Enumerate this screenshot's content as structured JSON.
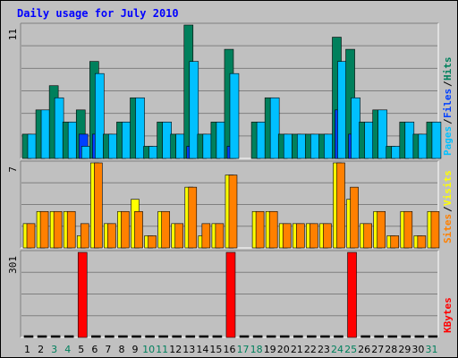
{
  "title": "Daily usage for July 2010",
  "colors": {
    "background": "#c0c0c0",
    "plot_background": "#c0c0c0",
    "title": "#0000ff",
    "hits": "#00805c",
    "files": "#0040ff",
    "pages": "#00c0ff",
    "visits": "#ffff00",
    "sites": "#ff8000",
    "kbytes": "#ff0000",
    "weekend_label": "#00805c",
    "weekday_label": "#000000",
    "gridline": "#808080"
  },
  "chart_data": {
    "type": "bar",
    "title": "Daily usage for July 2010",
    "days": [
      "1",
      "2",
      "3",
      "4",
      "5",
      "6",
      "7",
      "8",
      "9",
      "10",
      "11",
      "12",
      "13",
      "14",
      "15",
      "16",
      "17",
      "18",
      "19",
      "20",
      "21",
      "22",
      "23",
      "24",
      "25",
      "26",
      "27",
      "28",
      "29",
      "30",
      "31"
    ],
    "weekend_days": [
      "3",
      "4",
      "10",
      "11",
      "17",
      "18",
      "24",
      "25",
      "31"
    ],
    "panels": [
      {
        "id": "hits_files_pages",
        "axis_max_label": "11",
        "ylim": [
          0,
          11
        ],
        "right_labels": [
          {
            "text": "Hits",
            "color": "#00805c"
          },
          {
            "text": "/",
            "color": "#000000"
          },
          {
            "text": "Files",
            "color": "#0040ff"
          },
          {
            "text": "/",
            "color": "#000000"
          },
          {
            "text": "Pages",
            "color": "#00c0ff"
          }
        ],
        "series": [
          {
            "name": "Hits",
            "color": "#00805c",
            "values": [
              2,
              4,
              6,
              3,
              4,
              8,
              2,
              3,
              5,
              1,
              3,
              2,
              11,
              2,
              3,
              9,
              0,
              3,
              5,
              2,
              2,
              2,
              2,
              10,
              9,
              3,
              4,
              1,
              3,
              2,
              3
            ]
          },
          {
            "name": "Files",
            "color": "#0040ff",
            "values": [
              0,
              0,
              0,
              0,
              2,
              2,
              0,
              0,
              0,
              0,
              0,
              0,
              1,
              0,
              0,
              1,
              0,
              0,
              0,
              0,
              0,
              0,
              0,
              4,
              2,
              0,
              0,
              0,
              0,
              0,
              0
            ]
          },
          {
            "name": "Pages",
            "color": "#00c0ff",
            "values": [
              2,
              4,
              5,
              3,
              1,
              7,
              2,
              3,
              5,
              1,
              3,
              2,
              8,
              2,
              3,
              7,
              0,
              3,
              5,
              2,
              2,
              2,
              2,
              8,
              5,
              3,
              4,
              1,
              3,
              2,
              3
            ]
          }
        ]
      },
      {
        "id": "visits_sites",
        "axis_max_label": "7",
        "ylim": [
          0,
          7
        ],
        "right_labels": [
          {
            "text": "Visits",
            "color": "#ffff00"
          },
          {
            "text": "/",
            "color": "#000000"
          },
          {
            "text": "Sites",
            "color": "#ff8000"
          }
        ],
        "series": [
          {
            "name": "Visits",
            "color": "#ffff00",
            "values": [
              2,
              3,
              3,
              3,
              1,
              7,
              2,
              3,
              4,
              1,
              3,
              2,
              5,
              1,
              2,
              6,
              0,
              3,
              3,
              2,
              2,
              2,
              2,
              7,
              4,
              2,
              3,
              1,
              3,
              1,
              3
            ]
          },
          {
            "name": "Sites",
            "color": "#ff8000",
            "values": [
              2,
              3,
              3,
              3,
              2,
              7,
              2,
              3,
              3,
              1,
              3,
              2,
              5,
              2,
              2,
              6,
              0,
              3,
              3,
              2,
              2,
              2,
              2,
              7,
              5,
              2,
              3,
              1,
              3,
              1,
              3
            ]
          }
        ]
      },
      {
        "id": "kbytes",
        "axis_max_label": "301",
        "ylim": [
          0,
          301
        ],
        "right_labels": [
          {
            "text": "KBytes",
            "color": "#ff0000"
          }
        ],
        "series": [
          {
            "name": "KBytes",
            "color": "#ff0000",
            "values": [
              3,
              3,
              3,
              3,
              301,
              3,
              3,
              3,
              3,
              3,
              3,
              3,
              3,
              3,
              3,
              301,
              3,
              3,
              3,
              3,
              3,
              3,
              3,
              3,
              301,
              3,
              3,
              3,
              3,
              3,
              3
            ]
          }
        ]
      }
    ]
  }
}
